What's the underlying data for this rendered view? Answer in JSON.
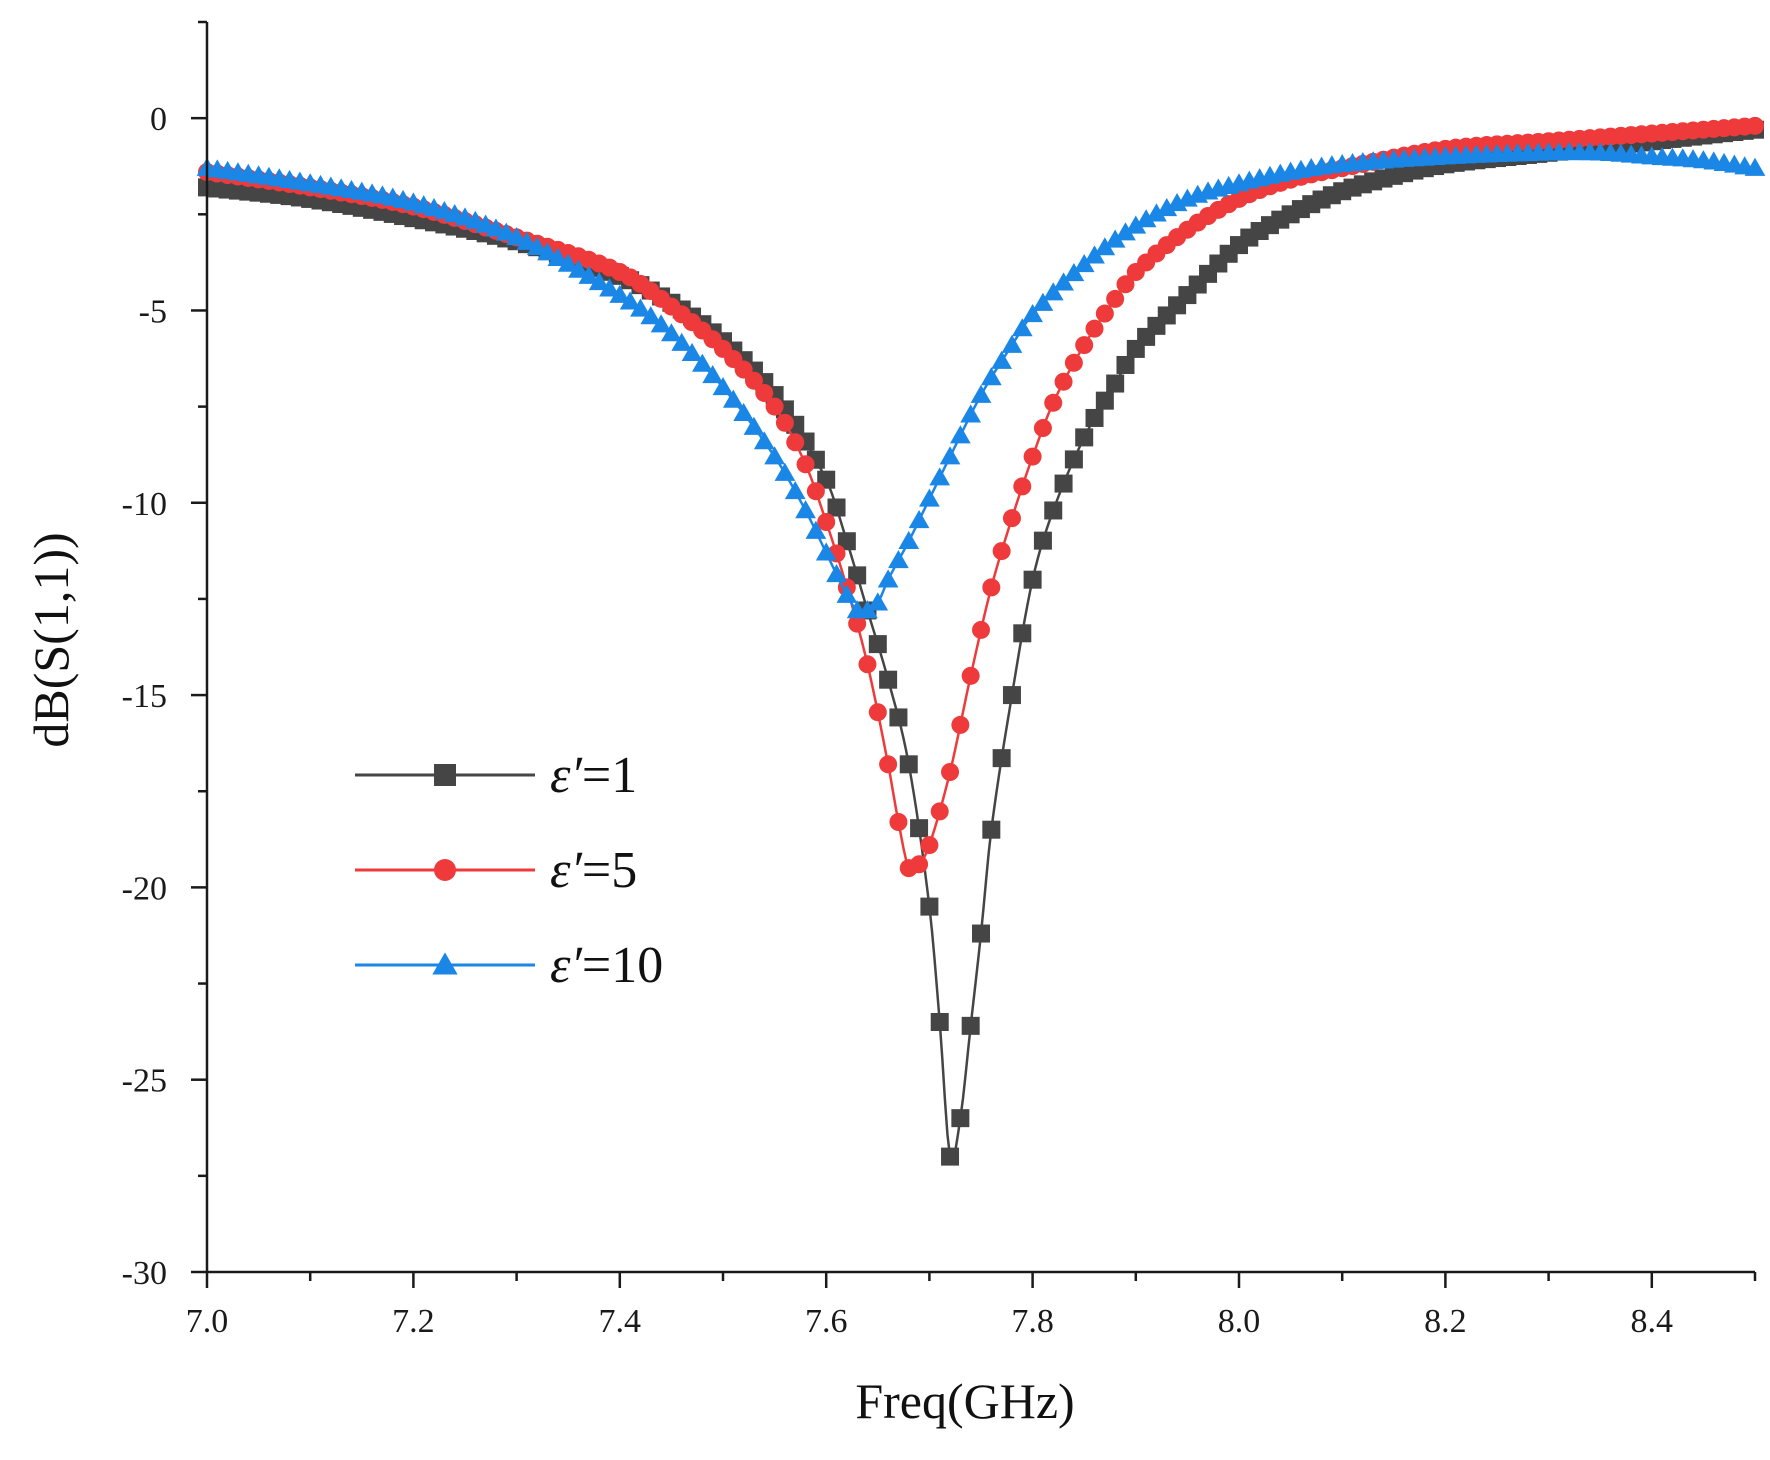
{
  "chart_data": {
    "type": "line",
    "title": "",
    "xlabel": "Freq(GHz)",
    "ylabel": "dB(S(1,1))",
    "xlim": [
      7.0,
      8.5
    ],
    "ylim": [
      -30,
      2.5
    ],
    "xticks": [
      7.0,
      7.2,
      7.4,
      7.6,
      7.8,
      8.0,
      8.2,
      8.4
    ],
    "xtick_labels": [
      "7.0",
      "7.2",
      "7.4",
      "7.6",
      "7.8",
      "8.0",
      "8.2",
      "8.4"
    ],
    "yticks": [
      -30,
      -25,
      -20,
      -15,
      -10,
      -5,
      0
    ],
    "ytick_labels": [
      "-30",
      "-25",
      "-20",
      "-15",
      "-10",
      "-5",
      "0"
    ],
    "legend_position": "lower-left",
    "series": [
      {
        "name": "ε′=1",
        "legend_symbol": "ε′",
        "legend_value": "=1",
        "color": "#454545",
        "marker": "square",
        "points": [
          [
            7.0,
            -1.8
          ],
          [
            7.1,
            -2.1
          ],
          [
            7.2,
            -2.6
          ],
          [
            7.3,
            -3.2
          ],
          [
            7.4,
            -4.1
          ],
          [
            7.45,
            -4.8
          ],
          [
            7.5,
            -5.8
          ],
          [
            7.55,
            -7.2
          ],
          [
            7.6,
            -9.4
          ],
          [
            7.62,
            -11.0
          ],
          [
            7.64,
            -12.8
          ],
          [
            7.66,
            -14.6
          ],
          [
            7.68,
            -16.8
          ],
          [
            7.7,
            -20.5
          ],
          [
            7.71,
            -23.5
          ],
          [
            7.72,
            -27.0
          ],
          [
            7.73,
            -26.0
          ],
          [
            7.74,
            -23.6
          ],
          [
            7.75,
            -21.2
          ],
          [
            7.76,
            -18.5
          ],
          [
            7.78,
            -15.0
          ],
          [
            7.8,
            -12.0
          ],
          [
            7.82,
            -10.2
          ],
          [
            7.85,
            -8.3
          ],
          [
            7.88,
            -6.9
          ],
          [
            7.9,
            -6.0
          ],
          [
            7.95,
            -4.6
          ],
          [
            8.0,
            -3.3
          ],
          [
            8.05,
            -2.5
          ],
          [
            8.1,
            -1.9
          ],
          [
            8.15,
            -1.5
          ],
          [
            8.2,
            -1.2
          ],
          [
            8.3,
            -0.9
          ],
          [
            8.4,
            -0.6
          ],
          [
            8.5,
            -0.3
          ]
        ]
      },
      {
        "name": "ε′=5",
        "legend_symbol": "ε′",
        "legend_value": "=5",
        "color": "#ee3a3a",
        "marker": "circle",
        "points": [
          [
            7.0,
            -1.4
          ],
          [
            7.1,
            -1.8
          ],
          [
            7.2,
            -2.3
          ],
          [
            7.3,
            -3.1
          ],
          [
            7.4,
            -4.0
          ],
          [
            7.45,
            -4.9
          ],
          [
            7.5,
            -6.0
          ],
          [
            7.55,
            -7.5
          ],
          [
            7.58,
            -9.0
          ],
          [
            7.6,
            -10.5
          ],
          [
            7.62,
            -12.2
          ],
          [
            7.64,
            -14.2
          ],
          [
            7.66,
            -16.8
          ],
          [
            7.67,
            -18.3
          ],
          [
            7.68,
            -19.5
          ],
          [
            7.69,
            -19.4
          ],
          [
            7.7,
            -18.9
          ],
          [
            7.72,
            -17.0
          ],
          [
            7.74,
            -14.5
          ],
          [
            7.76,
            -12.2
          ],
          [
            7.78,
            -10.4
          ],
          [
            7.8,
            -8.8
          ],
          [
            7.82,
            -7.4
          ],
          [
            7.85,
            -5.9
          ],
          [
            7.88,
            -4.7
          ],
          [
            7.9,
            -4.0
          ],
          [
            7.95,
            -2.9
          ],
          [
            8.0,
            -2.1
          ],
          [
            8.05,
            -1.6
          ],
          [
            8.1,
            -1.3
          ],
          [
            8.2,
            -0.8
          ],
          [
            8.3,
            -0.6
          ],
          [
            8.4,
            -0.4
          ],
          [
            8.5,
            -0.2
          ]
        ]
      },
      {
        "name": "ε′=10",
        "legend_symbol": "ε′",
        "legend_value": "=10",
        "color": "#1a86e6",
        "marker": "triangle",
        "points": [
          [
            7.0,
            -1.3
          ],
          [
            7.1,
            -1.7
          ],
          [
            7.2,
            -2.2
          ],
          [
            7.3,
            -3.1
          ],
          [
            7.4,
            -4.6
          ],
          [
            7.45,
            -5.6
          ],
          [
            7.5,
            -7.0
          ],
          [
            7.55,
            -8.8
          ],
          [
            7.58,
            -10.2
          ],
          [
            7.6,
            -11.3
          ],
          [
            7.62,
            -12.4
          ],
          [
            7.63,
            -12.8
          ],
          [
            7.64,
            -12.8
          ],
          [
            7.65,
            -12.6
          ],
          [
            7.66,
            -12.0
          ],
          [
            7.68,
            -11.0
          ],
          [
            7.7,
            -9.9
          ],
          [
            7.72,
            -8.8
          ],
          [
            7.75,
            -7.2
          ],
          [
            7.78,
            -5.9
          ],
          [
            7.8,
            -5.1
          ],
          [
            7.85,
            -3.8
          ],
          [
            7.9,
            -2.8
          ],
          [
            7.95,
            -2.1
          ],
          [
            8.0,
            -1.7
          ],
          [
            8.05,
            -1.4
          ],
          [
            8.1,
            -1.2
          ],
          [
            8.2,
            -1.0
          ],
          [
            8.3,
            -0.9
          ],
          [
            8.35,
            -0.9
          ],
          [
            8.4,
            -1.0
          ],
          [
            8.45,
            -1.1
          ],
          [
            8.5,
            -1.3
          ]
        ]
      }
    ]
  }
}
